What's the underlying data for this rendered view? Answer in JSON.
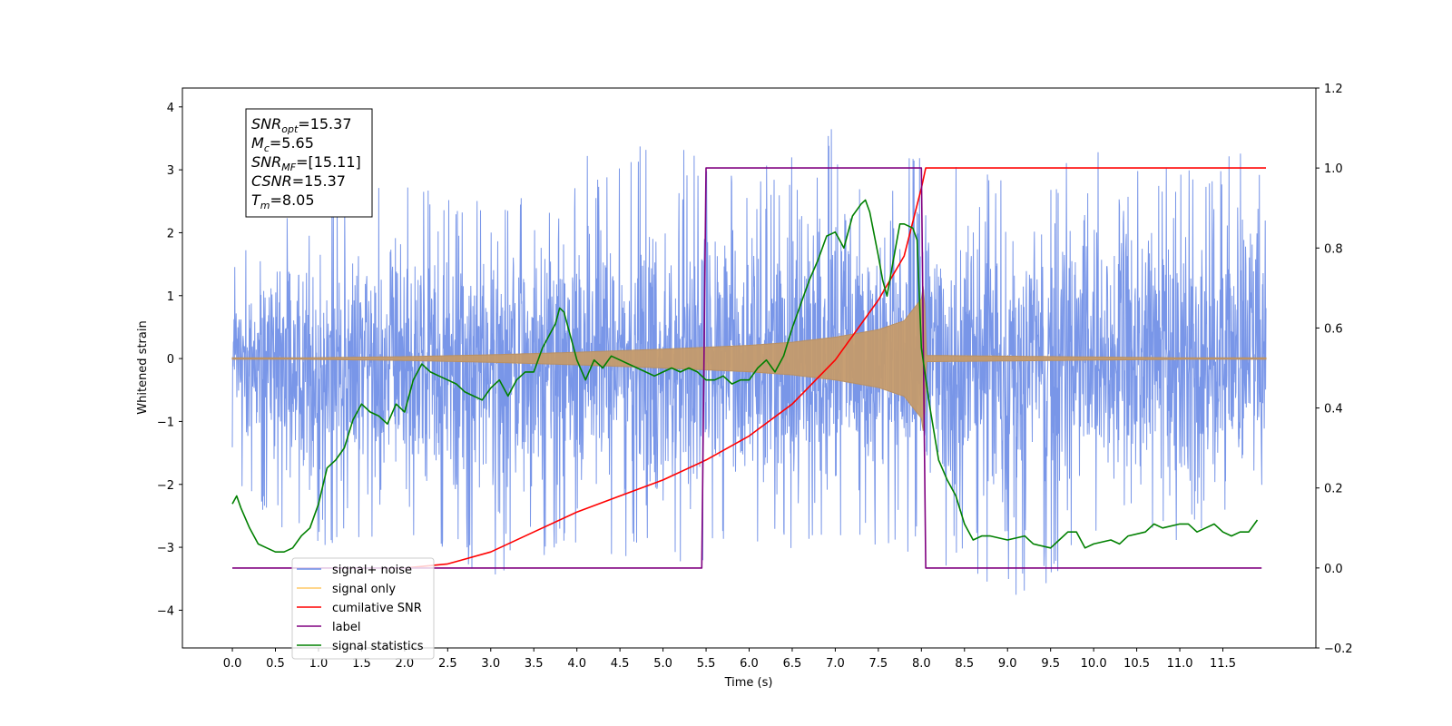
{
  "chart_data": {
    "type": "line",
    "xlabel": "Time (s)",
    "ylabel_left": "Whitened strain",
    "ylabel_right": "",
    "xlim": [
      -0.58,
      12.58
    ],
    "ylim_left": [
      -4.6,
      4.3
    ],
    "ylim_right": [
      -0.2,
      1.2
    ],
    "x_ticks": [
      0.0,
      0.5,
      1.0,
      1.5,
      2.0,
      2.5,
      3.0,
      3.5,
      4.0,
      4.5,
      5.0,
      5.5,
      6.0,
      6.5,
      7.0,
      7.5,
      8.0,
      8.5,
      9.0,
      9.5,
      10.0,
      10.5,
      11.0,
      11.5
    ],
    "x_tick_labels": [
      "0.0",
      "0.5",
      "1.0",
      "1.5",
      "2.0",
      "2.5",
      "3.0",
      "3.5",
      "4.0",
      "4.5",
      "5.0",
      "5.5",
      "6.0",
      "6.5",
      "7.0",
      "7.5",
      "8.0",
      "8.5",
      "9.0",
      "9.5",
      "10.0",
      "10.5",
      "11.0",
      "11.5"
    ],
    "y_ticks_left": [
      4,
      3,
      2,
      1,
      0,
      -1,
      -2,
      -3,
      -4
    ],
    "y_tick_labels_left": [
      "4",
      "3",
      "2",
      "1",
      "0",
      "−1",
      "−2",
      "−3",
      "−4"
    ],
    "y_ticks_right": [
      1.2,
      1.0,
      0.8,
      0.6,
      0.4,
      0.2,
      0.0,
      -0.2
    ],
    "y_tick_labels_right": [
      "1.2",
      "1.0",
      "0.8",
      "0.6",
      "0.4",
      "0.2",
      "0.0",
      "−0.2"
    ],
    "grid": false,
    "legend_placement": "lower-left",
    "annotation": {
      "lines": [
        {
          "main": "SNR",
          "sub": "opt",
          "rest": "=15.37"
        },
        {
          "main": "M",
          "sub": "c",
          "rest": "=5.65"
        },
        {
          "main": "SNR",
          "sub": "MF",
          "rest": "=[15.11]"
        },
        {
          "main": "CSNR",
          "sub": "",
          "rest": "=15.37"
        },
        {
          "main": "T",
          "sub": "m",
          "rest": "=8.05"
        }
      ]
    },
    "series": [
      {
        "name": "signal+ noise",
        "axis": "left",
        "color": "#6a8be6",
        "style": "noise band",
        "x_range": [
          0.0,
          12.0
        ],
        "approx_upper_envelope": [
          [
            0.0,
            1.6
          ],
          [
            1.0,
            2.6
          ],
          [
            2.0,
            2.8
          ],
          [
            3.0,
            2.6
          ],
          [
            4.0,
            3.2
          ],
          [
            5.0,
            3.5
          ],
          [
            6.0,
            2.9
          ],
          [
            6.7,
            3.9
          ],
          [
            7.5,
            3.2
          ],
          [
            8.0,
            3.4
          ],
          [
            9.0,
            2.8
          ],
          [
            10.0,
            3.3
          ],
          [
            11.0,
            3.0
          ],
          [
            11.9,
            3.4
          ]
        ],
        "approx_lower_envelope": [
          [
            0.0,
            -2.3
          ],
          [
            1.0,
            -3.0
          ],
          [
            2.0,
            -3.0
          ],
          [
            3.0,
            -3.5
          ],
          [
            4.0,
            -3.0
          ],
          [
            5.0,
            -3.4
          ],
          [
            6.0,
            -3.1
          ],
          [
            7.0,
            -3.0
          ],
          [
            8.0,
            -3.2
          ],
          [
            9.3,
            -3.9
          ],
          [
            10.0,
            -3.2
          ],
          [
            11.0,
            -3.0
          ],
          [
            11.9,
            -2.2
          ]
        ]
      },
      {
        "name": "signal only",
        "axis": "left",
        "color": "#ffa500",
        "style": "chirp",
        "amplitude_envelope": [
          [
            0.0,
            0.0
          ],
          [
            2.0,
            0.03
          ],
          [
            3.0,
            0.06
          ],
          [
            4.0,
            0.1
          ],
          [
            5.0,
            0.15
          ],
          [
            5.5,
            0.18
          ],
          [
            6.0,
            0.21
          ],
          [
            6.5,
            0.26
          ],
          [
            7.0,
            0.34
          ],
          [
            7.5,
            0.46
          ],
          [
            7.8,
            0.6
          ],
          [
            8.0,
            0.95
          ],
          [
            8.03,
            1.25
          ],
          [
            8.06,
            0.05
          ],
          [
            12.0,
            0.0
          ]
        ]
      },
      {
        "name": "cumilative SNR",
        "axis": "right",
        "color": "#ff0000",
        "points": [
          [
            2.0,
            0.0
          ],
          [
            2.5,
            0.01
          ],
          [
            3.0,
            0.04
          ],
          [
            3.5,
            0.09
          ],
          [
            4.0,
            0.14
          ],
          [
            4.5,
            0.18
          ],
          [
            5.0,
            0.22
          ],
          [
            5.5,
            0.27
          ],
          [
            6.0,
            0.33
          ],
          [
            6.5,
            0.41
          ],
          [
            7.0,
            0.52
          ],
          [
            7.5,
            0.67
          ],
          [
            7.8,
            0.78
          ],
          [
            8.0,
            0.95
          ],
          [
            8.05,
            1.0
          ],
          [
            12.0,
            1.0
          ]
        ]
      },
      {
        "name": "label",
        "axis": "right",
        "color": "#800080",
        "points": [
          [
            0.0,
            0.0
          ],
          [
            5.45,
            0.0
          ],
          [
            5.5,
            1.0
          ],
          [
            8.0,
            1.0
          ],
          [
            8.05,
            0.0
          ],
          [
            11.95,
            0.0
          ]
        ]
      },
      {
        "name": "signal statistics",
        "axis": "right",
        "color": "#008000",
        "points": [
          [
            0.0,
            0.16
          ],
          [
            0.05,
            0.18
          ],
          [
            0.1,
            0.15
          ],
          [
            0.2,
            0.1
          ],
          [
            0.3,
            0.06
          ],
          [
            0.4,
            0.05
          ],
          [
            0.5,
            0.04
          ],
          [
            0.6,
            0.04
          ],
          [
            0.7,
            0.05
          ],
          [
            0.8,
            0.08
          ],
          [
            0.9,
            0.1
          ],
          [
            1.0,
            0.16
          ],
          [
            1.1,
            0.25
          ],
          [
            1.2,
            0.27
          ],
          [
            1.3,
            0.3
          ],
          [
            1.4,
            0.37
          ],
          [
            1.5,
            0.41
          ],
          [
            1.6,
            0.39
          ],
          [
            1.7,
            0.38
          ],
          [
            1.8,
            0.36
          ],
          [
            1.9,
            0.41
          ],
          [
            2.0,
            0.39
          ],
          [
            2.1,
            0.47
          ],
          [
            2.2,
            0.51
          ],
          [
            2.3,
            0.49
          ],
          [
            2.4,
            0.48
          ],
          [
            2.5,
            0.47
          ],
          [
            2.6,
            0.46
          ],
          [
            2.7,
            0.44
          ],
          [
            2.8,
            0.43
          ],
          [
            2.9,
            0.42
          ],
          [
            3.0,
            0.45
          ],
          [
            3.1,
            0.47
          ],
          [
            3.2,
            0.43
          ],
          [
            3.3,
            0.47
          ],
          [
            3.4,
            0.49
          ],
          [
            3.5,
            0.49
          ],
          [
            3.6,
            0.55
          ],
          [
            3.7,
            0.59
          ],
          [
            3.75,
            0.61
          ],
          [
            3.8,
            0.65
          ],
          [
            3.85,
            0.64
          ],
          [
            3.9,
            0.6
          ],
          [
            4.0,
            0.52
          ],
          [
            4.1,
            0.47
          ],
          [
            4.2,
            0.52
          ],
          [
            4.3,
            0.5
          ],
          [
            4.4,
            0.53
          ],
          [
            4.5,
            0.52
          ],
          [
            4.6,
            0.51
          ],
          [
            4.7,
            0.5
          ],
          [
            4.8,
            0.49
          ],
          [
            4.9,
            0.48
          ],
          [
            5.0,
            0.49
          ],
          [
            5.1,
            0.5
          ],
          [
            5.2,
            0.49
          ],
          [
            5.3,
            0.5
          ],
          [
            5.4,
            0.49
          ],
          [
            5.5,
            0.47
          ],
          [
            5.6,
            0.47
          ],
          [
            5.7,
            0.48
          ],
          [
            5.8,
            0.46
          ],
          [
            5.9,
            0.47
          ],
          [
            6.0,
            0.47
          ],
          [
            6.1,
            0.5
          ],
          [
            6.2,
            0.52
          ],
          [
            6.3,
            0.49
          ],
          [
            6.4,
            0.53
          ],
          [
            6.5,
            0.6
          ],
          [
            6.6,
            0.66
          ],
          [
            6.7,
            0.72
          ],
          [
            6.8,
            0.77
          ],
          [
            6.9,
            0.83
          ],
          [
            7.0,
            0.84
          ],
          [
            7.05,
            0.82
          ],
          [
            7.1,
            0.8
          ],
          [
            7.2,
            0.88
          ],
          [
            7.3,
            0.91
          ],
          [
            7.35,
            0.92
          ],
          [
            7.4,
            0.89
          ],
          [
            7.5,
            0.78
          ],
          [
            7.55,
            0.72
          ],
          [
            7.6,
            0.68
          ],
          [
            7.7,
            0.8
          ],
          [
            7.75,
            0.86
          ],
          [
            7.8,
            0.86
          ],
          [
            7.9,
            0.85
          ],
          [
            7.95,
            0.82
          ],
          [
            8.0,
            0.55
          ],
          [
            8.1,
            0.4
          ],
          [
            8.2,
            0.27
          ],
          [
            8.3,
            0.22
          ],
          [
            8.4,
            0.18
          ],
          [
            8.5,
            0.11
          ],
          [
            8.6,
            0.07
          ],
          [
            8.7,
            0.08
          ],
          [
            8.8,
            0.08
          ],
          [
            9.0,
            0.07
          ],
          [
            9.2,
            0.08
          ],
          [
            9.3,
            0.06
          ],
          [
            9.5,
            0.05
          ],
          [
            9.6,
            0.07
          ],
          [
            9.7,
            0.09
          ],
          [
            9.8,
            0.09
          ],
          [
            9.9,
            0.05
          ],
          [
            10.0,
            0.06
          ],
          [
            10.2,
            0.07
          ],
          [
            10.3,
            0.06
          ],
          [
            10.4,
            0.08
          ],
          [
            10.6,
            0.09
          ],
          [
            10.7,
            0.11
          ],
          [
            10.8,
            0.1
          ],
          [
            11.0,
            0.11
          ],
          [
            11.1,
            0.11
          ],
          [
            11.2,
            0.09
          ],
          [
            11.3,
            0.1
          ],
          [
            11.4,
            0.11
          ],
          [
            11.5,
            0.09
          ],
          [
            11.6,
            0.08
          ],
          [
            11.7,
            0.09
          ],
          [
            11.8,
            0.09
          ],
          [
            11.9,
            0.12
          ]
        ]
      }
    ]
  }
}
